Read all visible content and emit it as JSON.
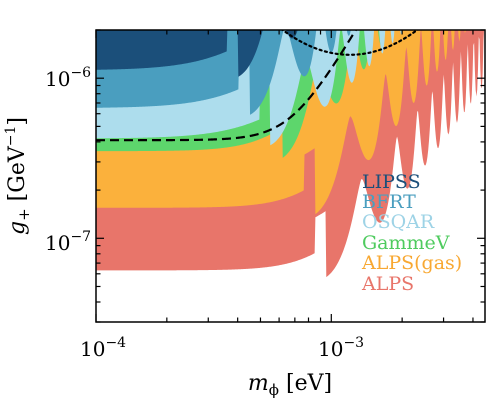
{
  "chart_data": {
    "type": "area",
    "title": "",
    "xlabel": "m_ϕ [eV]",
    "ylabel": "g_+ [GeV^−1]",
    "x_scale": "log",
    "y_scale": "log",
    "xlim": [
      0.0001,
      0.0045
    ],
    "ylim": [
      3e-08,
      2e-06
    ],
    "x_ticks": [
      {
        "value": 0.0001,
        "base": "10",
        "exp": "−4"
      },
      {
        "value": 0.001,
        "base": "10",
        "exp": "−3"
      }
    ],
    "y_ticks": [
      {
        "value": 1e-07,
        "base": "10",
        "exp": "−7"
      },
      {
        "value": 1e-06,
        "base": "10",
        "exp": "−6"
      }
    ],
    "series": [
      {
        "name": "ALPS",
        "color": "#E8756A",
        "plateau": 6.3e-08
      },
      {
        "name": "ALPS(gas)",
        "color": "#FBB13C",
        "plateau": 1.55e-07
      },
      {
        "name": "GammeV",
        "color": "#5DD66C",
        "plateau": 3.5e-07
      },
      {
        "name": "OSQAR",
        "color": "#ADDDED",
        "plateau": 4.2e-07
      },
      {
        "name": "BFRT",
        "color": "#4A9EBF",
        "plateau": 6.5e-07
      },
      {
        "name": "LIPSS",
        "color": "#1B4F7A",
        "plateau": 1.12e-06
      }
    ],
    "dashed_curve": {
      "style": "dashed",
      "plateau": 4.1e-07
    },
    "dotted_curve": {
      "style": "dotted",
      "min": 1.4e-06
    },
    "legend": {
      "position": "right",
      "entries": [
        {
          "label": "LIPSS",
          "color": "#1B4F7A"
        },
        {
          "label": "BFRT",
          "color": "#4A9EBF"
        },
        {
          "label": "OSQAR",
          "color": "#9ED3E6"
        },
        {
          "label": "GammeV",
          "color": "#4FCB5F"
        },
        {
          "label": "ALPS(gas)",
          "color": "#F8A832"
        },
        {
          "label": "ALPS",
          "color": "#E8756A"
        }
      ]
    }
  }
}
